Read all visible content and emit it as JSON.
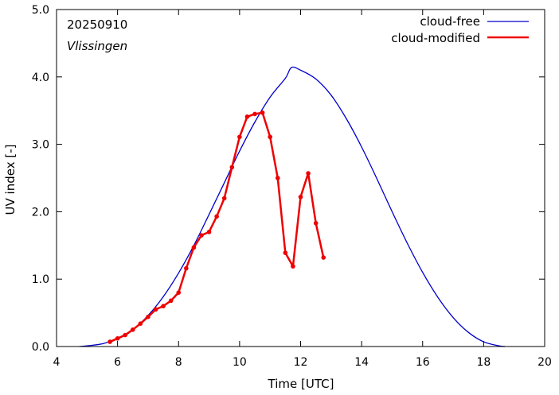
{
  "chart_data": {
    "type": "line",
    "xlabel": "Time  [UTC]",
    "ylabel": "UV index  [-]",
    "xlim": [
      4,
      20
    ],
    "ylim": [
      0,
      5
    ],
    "x_ticks": [
      4,
      6,
      8,
      10,
      12,
      14,
      16,
      18,
      20
    ],
    "x_tick_labels": [
      "4",
      "6",
      "8",
      "10",
      "12",
      "14",
      "16",
      "18",
      "20"
    ],
    "y_ticks": [
      0,
      1,
      2,
      3,
      4,
      5
    ],
    "y_tick_labels": [
      "0.0",
      "1.0",
      "2.0",
      "3.0",
      "4.0",
      "5.0"
    ],
    "grid": false,
    "legend_position": "top-right",
    "annotations": {
      "date": "20250910",
      "station": "Vlissingen"
    },
    "series": [
      {
        "name": "cloud-free",
        "color": "#0000cc",
        "markers": false,
        "x": [
          4.75,
          5.0,
          5.5,
          6.0,
          6.5,
          7.0,
          7.5,
          8.0,
          8.5,
          9.0,
          9.5,
          10.0,
          10.5,
          11.0,
          11.5,
          11.7,
          12.0,
          12.5,
          13.0,
          13.5,
          14.0,
          14.5,
          15.0,
          15.5,
          16.0,
          16.5,
          17.0,
          17.5,
          18.0,
          18.5,
          18.7
        ],
        "y": [
          0.0,
          0.01,
          0.04,
          0.12,
          0.25,
          0.46,
          0.74,
          1.09,
          1.5,
          1.96,
          2.43,
          2.9,
          3.33,
          3.7,
          3.98,
          4.14,
          4.1,
          3.97,
          3.73,
          3.38,
          2.96,
          2.49,
          2.0,
          1.53,
          1.1,
          0.73,
          0.43,
          0.21,
          0.07,
          0.01,
          0.0
        ]
      },
      {
        "name": "cloud-modified",
        "color": "#ee0000",
        "markers": true,
        "x": [
          5.75,
          6.0,
          6.25,
          6.5,
          6.75,
          7.0,
          7.25,
          7.5,
          7.75,
          8.0,
          8.25,
          8.5,
          8.75,
          9.0,
          9.25,
          9.5,
          9.75,
          10.0,
          10.25,
          10.5,
          10.75,
          11.0,
          11.25,
          11.5,
          11.75,
          12.0,
          12.25,
          12.5,
          12.75
        ],
        "y": [
          0.07,
          0.12,
          0.17,
          0.25,
          0.34,
          0.44,
          0.55,
          0.6,
          0.68,
          0.8,
          1.16,
          1.47,
          1.65,
          1.7,
          1.93,
          2.2,
          2.66,
          3.11,
          3.41,
          3.45,
          3.47,
          3.11,
          2.5,
          1.39,
          1.19,
          2.22,
          2.57,
          1.83,
          1.32
        ]
      }
    ]
  }
}
